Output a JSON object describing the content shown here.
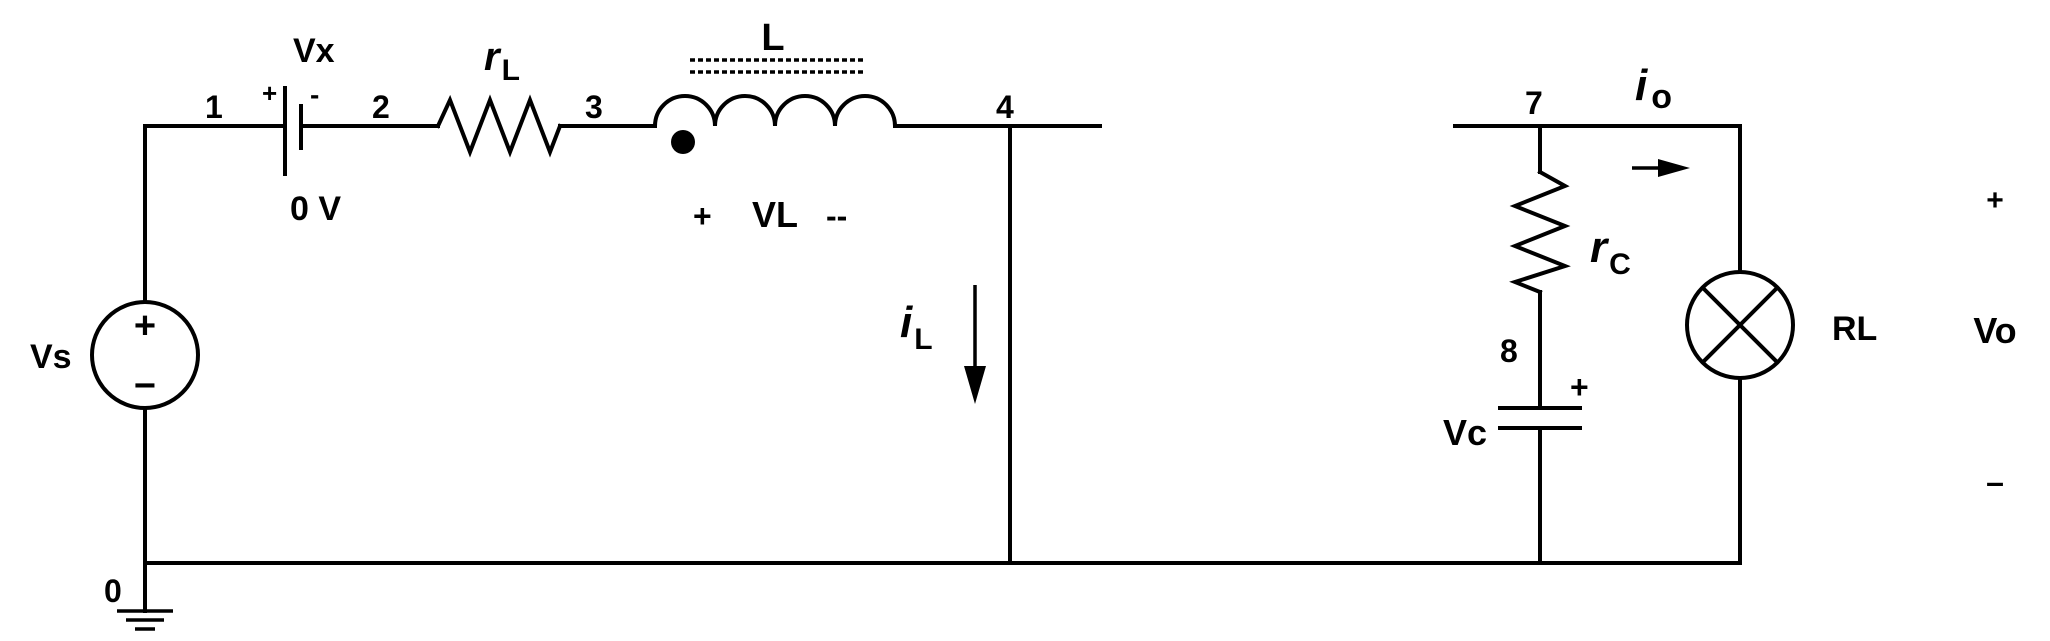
{
  "nodes": {
    "n0": "0",
    "n1": "1",
    "n2": "2",
    "n3": "3",
    "n4": "4",
    "n7": "7",
    "n8": "8"
  },
  "source": {
    "label": "Vs",
    "plus": "+",
    "minus": "−"
  },
  "battery": {
    "label": "Vx",
    "value": "0 V",
    "plus": "+",
    "minus": "-"
  },
  "resistor_l": {
    "symbol": "r",
    "subscript": "L"
  },
  "inductor": {
    "label": "L",
    "voltage_label": "VL",
    "plus": "+",
    "minus": "--"
  },
  "inductor_current": {
    "symbol": "i",
    "subscript": "L"
  },
  "resistor_c": {
    "symbol": "r",
    "subscript": "C"
  },
  "capacitor": {
    "label": "Vc",
    "plus": "+"
  },
  "output_current": {
    "symbol": "i",
    "subscript": "o"
  },
  "load": {
    "label": "RL"
  },
  "output_voltage": {
    "label": "Vo",
    "plus": "+",
    "minus": "–"
  }
}
